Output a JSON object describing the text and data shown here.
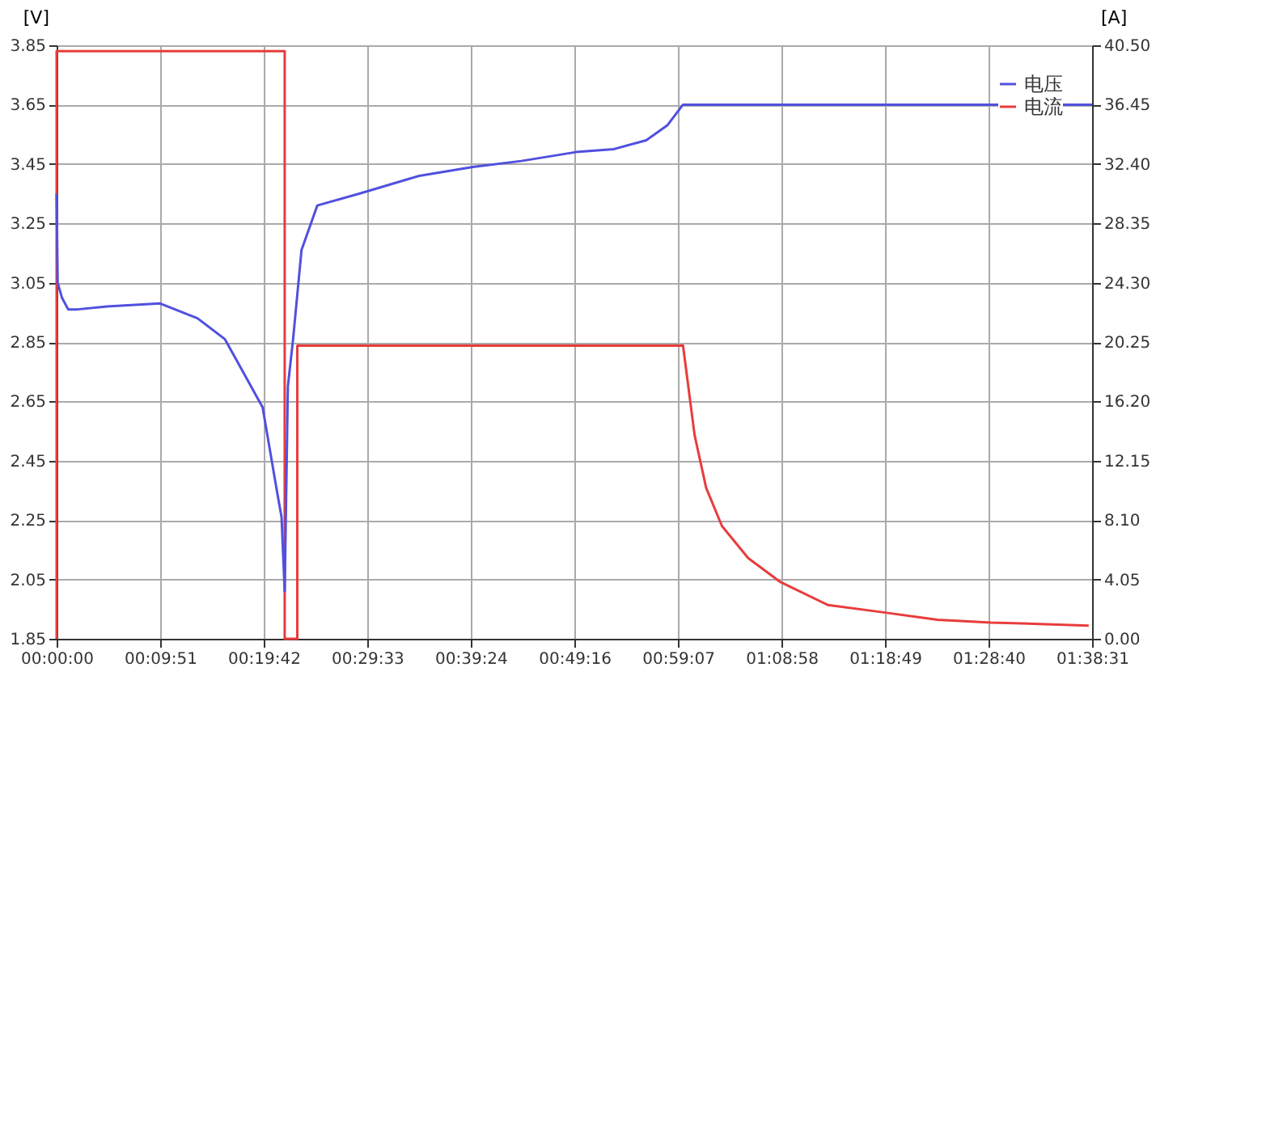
{
  "chart_data": {
    "type": "line",
    "ylabel": "[V]",
    "y2label": "[A]",
    "xlim": [
      0,
      98.52
    ],
    "xticks": [
      {
        "value": 0,
        "label": "00:00:00"
      },
      {
        "value": 9.85,
        "label": "00:09:51"
      },
      {
        "value": 19.7,
        "label": "00:19:42"
      },
      {
        "value": 29.55,
        "label": "00:29:33"
      },
      {
        "value": 39.4,
        "label": "00:39:24"
      },
      {
        "value": 49.27,
        "label": "00:49:16"
      },
      {
        "value": 59.12,
        "label": "00:59:07"
      },
      {
        "value": 68.97,
        "label": "01:08:58"
      },
      {
        "value": 78.82,
        "label": "01:18:49"
      },
      {
        "value": 88.67,
        "label": "01:28:40"
      },
      {
        "value": 98.52,
        "label": "01:38:31"
      }
    ],
    "ylim": [
      1.85,
      3.85
    ],
    "yticks": [
      1.85,
      2.05,
      2.25,
      2.45,
      2.65,
      2.85,
      3.05,
      3.25,
      3.45,
      3.65,
      3.85
    ],
    "y2lim": [
      0,
      40.5
    ],
    "y2ticks": [
      {
        "value": 0,
        "label": "0.00"
      },
      4.05,
      {
        "value": 8.1,
        "label": "8.10"
      },
      12.15,
      {
        "value": 16.2,
        "label": "16.20"
      },
      20.25,
      {
        "value": 24.3,
        "label": "24.30"
      },
      28.35,
      {
        "value": 32.4,
        "label": "32.40"
      },
      36.45,
      {
        "value": 40.5,
        "label": "40.50"
      }
    ],
    "grid": true,
    "legend": "top right",
    "line_style": "solid",
    "marker": "none",
    "series": [
      {
        "name": "电压",
        "color": "#5050e0",
        "x": [
          0,
          0.1,
          0.5,
          1.1,
          2,
          4.8,
          9.85,
          13.4,
          16,
          17.1,
          19.6,
          20.9,
          21.4,
          21.7,
          22.0,
          22.5,
          23.3,
          24.8,
          28.8,
          34.5,
          39.6,
          44.2,
          49.4,
          53,
          56.1,
          58.1,
          59.6,
          98.52
        ],
        "values": [
          3.35,
          3.05,
          3.0,
          2.96,
          2.96,
          2.97,
          2.98,
          2.93,
          2.86,
          2.79,
          2.63,
          2.36,
          2.26,
          2.01,
          2.7,
          2.86,
          3.16,
          3.31,
          3.35,
          3.41,
          3.44,
          3.46,
          3.49,
          3.5,
          3.53,
          3.58,
          3.65,
          3.65
        ]
      },
      {
        "name": "电流",
        "color": "#e83c3c",
        "axis": "y2",
        "x": [
          0,
          0,
          21.7,
          21.7,
          22.9,
          22.9,
          59.6,
          60.7,
          61.8,
          63.3,
          65.8,
          68.8,
          73.4,
          78.7,
          83.8,
          88.9,
          94.1,
          98.2
        ],
        "values": [
          0,
          40.1,
          40.1,
          0,
          0,
          20.0,
          20.0,
          13.9,
          10.3,
          7.7,
          5.5,
          3.9,
          2.3,
          1.8,
          1.3,
          1.1,
          1.0,
          0.9
        ]
      }
    ]
  }
}
